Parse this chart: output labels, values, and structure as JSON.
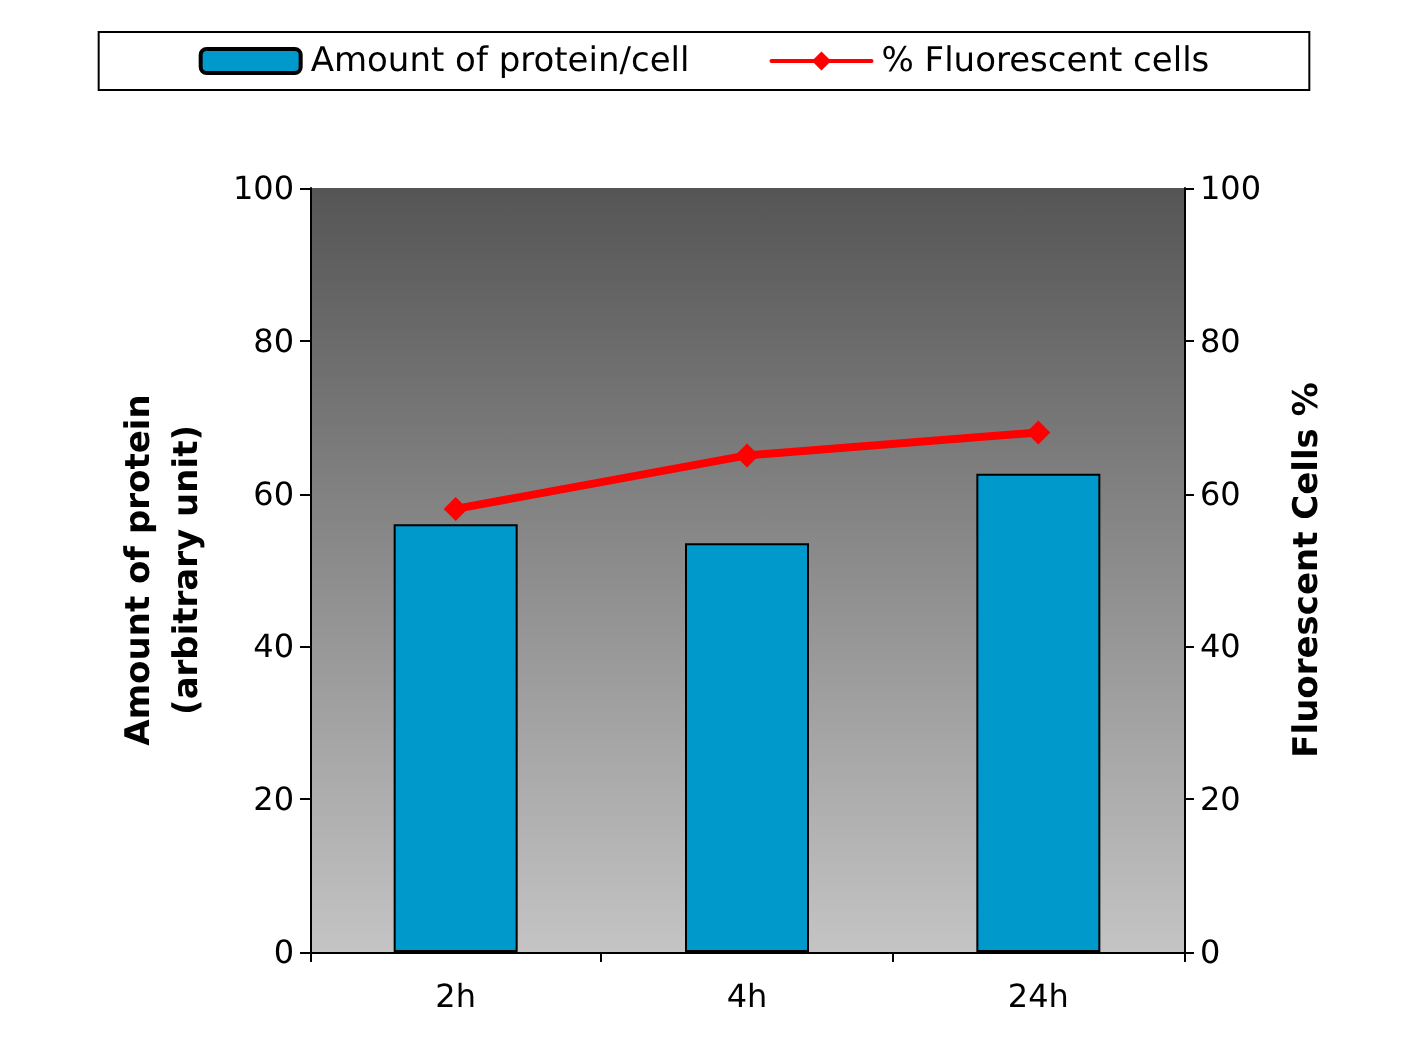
{
  "chart_data": {
    "type": "bar",
    "categories": [
      "2h",
      "4h",
      "24h"
    ],
    "series": [
      {
        "name": "Amount of protein/cell",
        "color": "#0099cc",
        "values": [
          56,
          53.5,
          62.6
        ]
      },
      {
        "name": "% Fluorescent cells",
        "type": "line",
        "axis": "y2",
        "color": "#ff0000",
        "marker": "diamond",
        "values": [
          58,
          65,
          68
        ]
      }
    ],
    "ylabel": "Amount of protein\n(arbitrary unit)",
    "y2label": "Fluorescent Cells %",
    "ylim": [
      0,
      100
    ],
    "yticks": [
      0,
      20,
      40,
      60,
      80,
      100
    ],
    "y2lim": [
      0,
      100
    ],
    "y2ticks": [
      0,
      20,
      40,
      60,
      80,
      100
    ],
    "grid": false,
    "legend": "top"
  }
}
